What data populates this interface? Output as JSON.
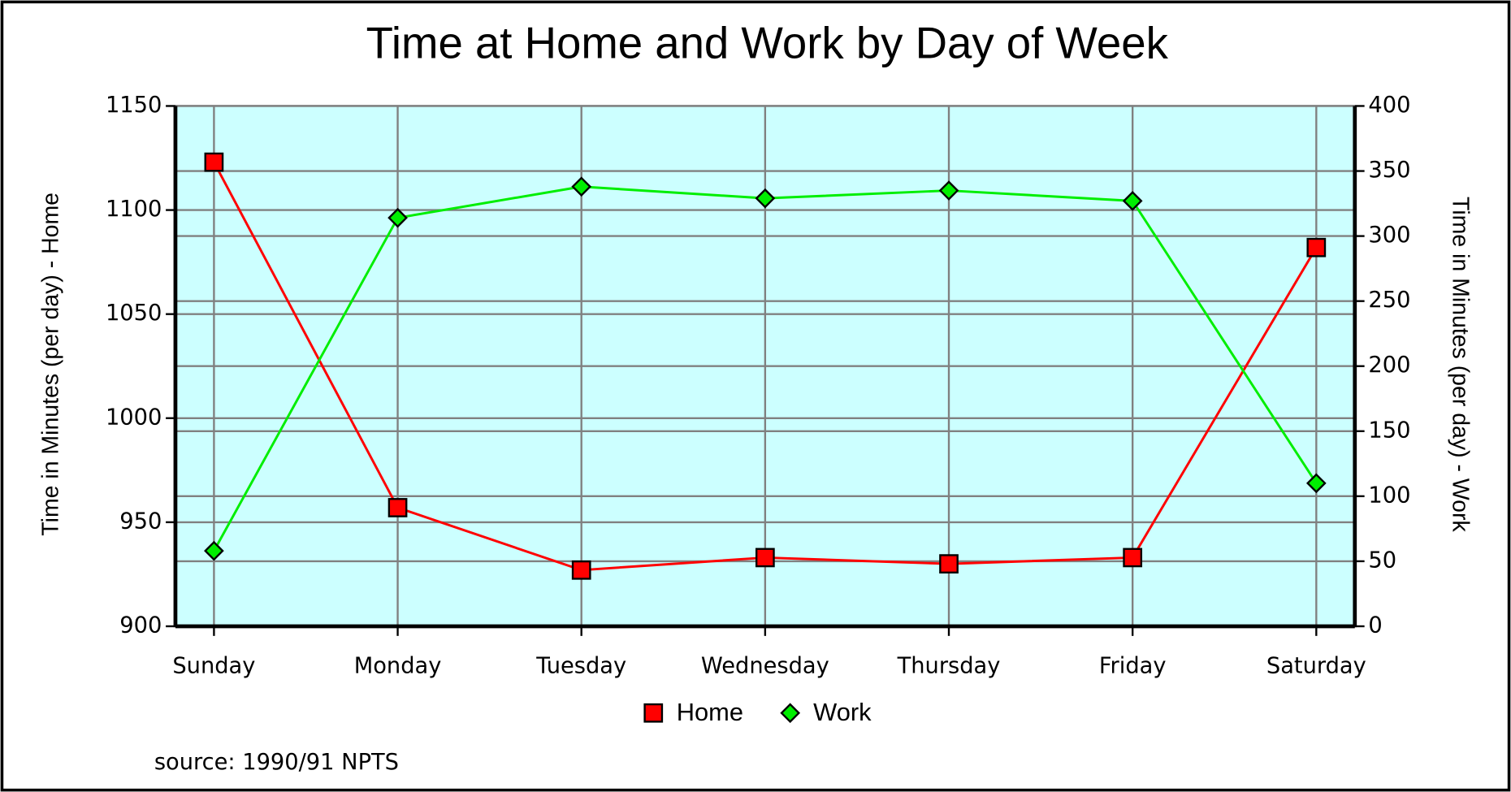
{
  "chart_data": {
    "type": "line",
    "title": "Time at Home and Work by Day of Week",
    "categories": [
      "Sunday",
      "Monday",
      "Tuesday",
      "Wednesday",
      "Thursday",
      "Friday",
      "Saturday"
    ],
    "series": [
      {
        "name": "Home",
        "color": "#ff0000",
        "values": [
          1123,
          957,
          927,
          933,
          930,
          933,
          1082
        ]
      },
      {
        "name": "Work",
        "color": "#00ee00",
        "axis": "y2",
        "values": [
          58,
          314,
          338,
          329,
          335,
          327,
          110
        ]
      }
    ],
    "ylabel": "Time in Minutes (per day) - Home",
    "y2label": "Time in Minutes (per day) - Work",
    "ylim": [
      900,
      1150
    ],
    "yticks": [
      900,
      950,
      1000,
      1050,
      1100,
      1150
    ],
    "y2lim": [
      0,
      400
    ],
    "y2ticks": [
      0,
      50,
      100,
      150,
      200,
      250,
      300,
      350,
      400
    ],
    "grid": true,
    "legend": "bottom",
    "source": "source: 1990/91 NPTS"
  }
}
